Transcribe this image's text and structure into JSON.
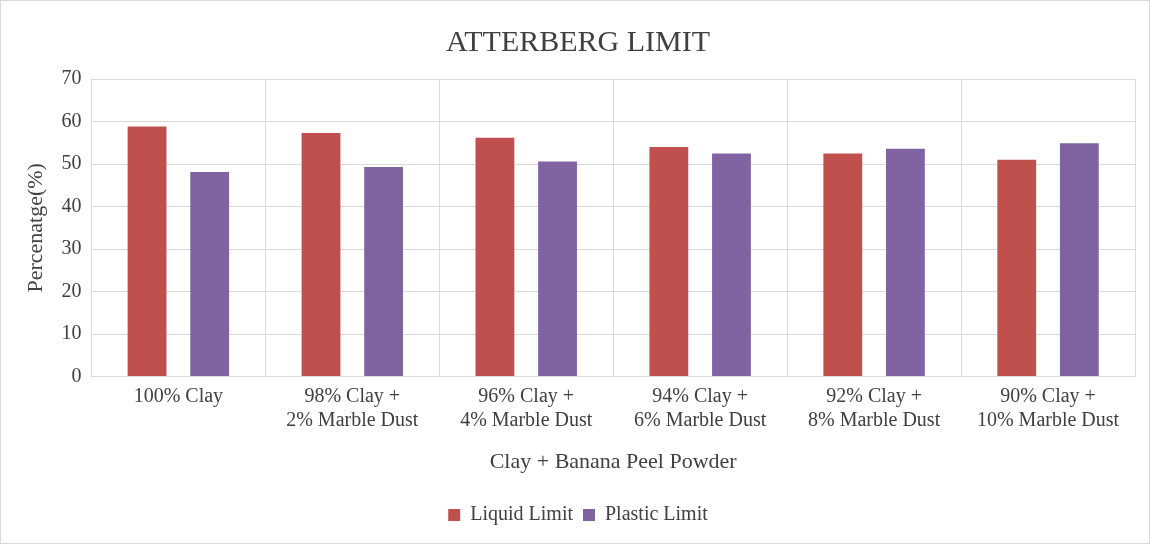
{
  "chart_data": {
    "type": "bar",
    "title": "ATTERBERG LIMIT",
    "xlabel": "Clay + Banana Peel Powder",
    "ylabel": "Percenatge(%)",
    "categories": [
      "100% Clay",
      "98% Clay + 2% Marble Dust",
      "96% Clay + 4% Marble Dust",
      "94% Clay + 6% Marble Dust",
      "92% Clay + 8% Marble Dust",
      "90% Clay + 10% Marble Dust"
    ],
    "series": [
      {
        "name": "Liquid Limit",
        "color": "#c0504d",
        "values": [
          58.8,
          57.3,
          56.2,
          54.0,
          52.5,
          51.0
        ]
      },
      {
        "name": "Plastic Limit",
        "color": "#8064a2",
        "values": [
          48.1,
          49.3,
          50.6,
          52.5,
          53.6,
          54.9
        ]
      }
    ],
    "ylim": [
      0,
      70
    ],
    "yticks": [
      0,
      10,
      20,
      30,
      40,
      50,
      60,
      70
    ],
    "grid": true,
    "legend": "bottom"
  }
}
